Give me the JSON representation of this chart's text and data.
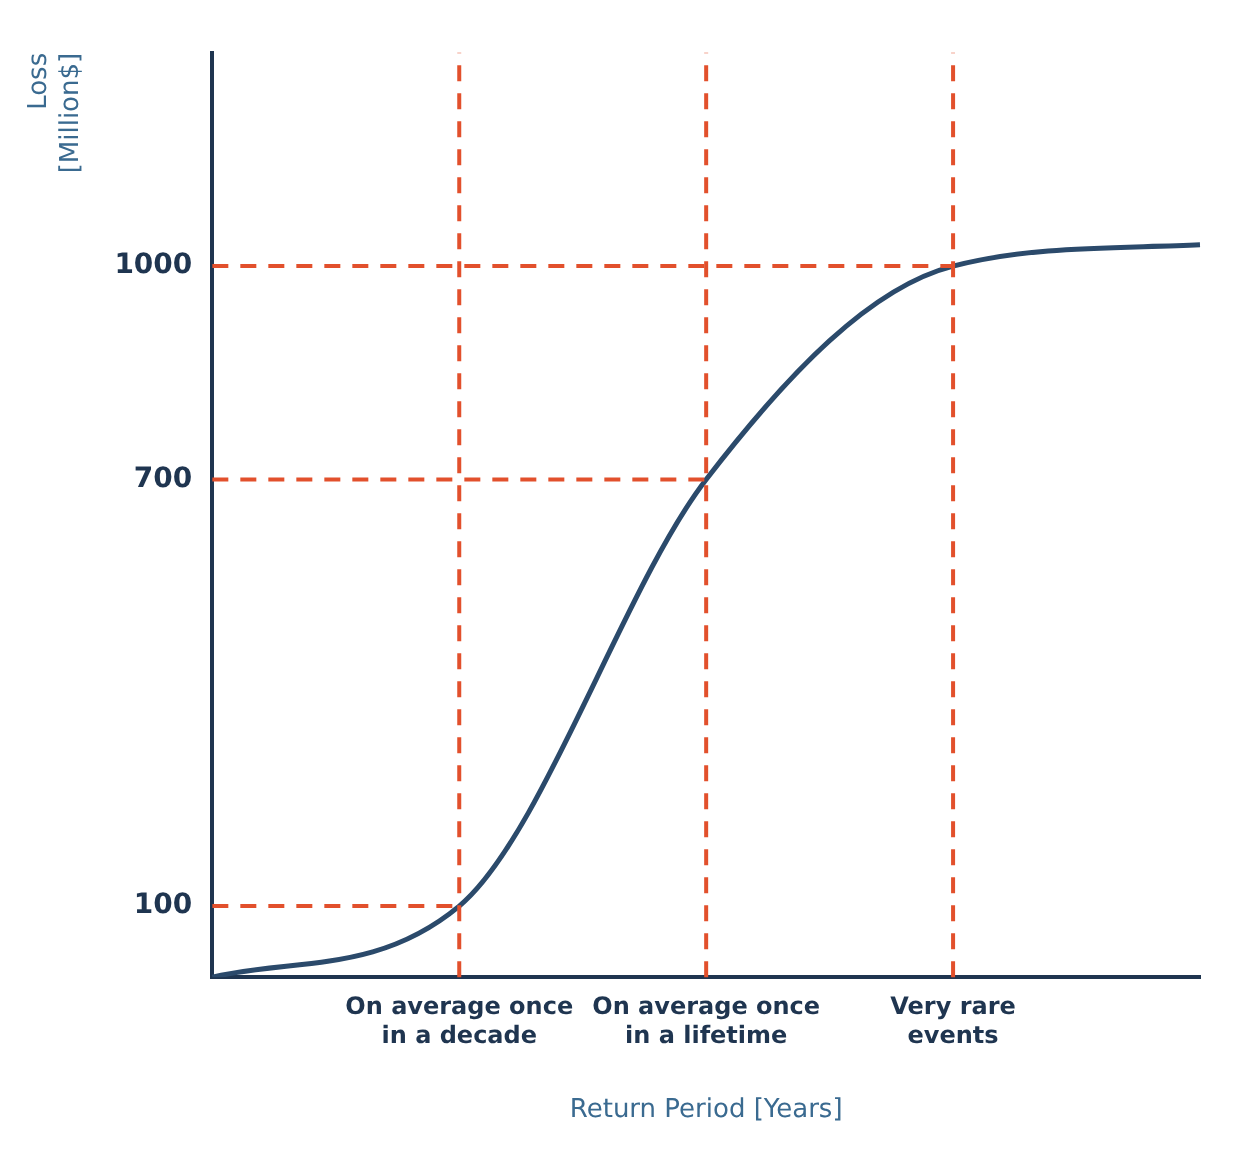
{
  "chart_data": {
    "type": "line",
    "xlabel": "Return Period [Years]",
    "ylabel": "Loss [Million$]",
    "categories": [
      null,
      "On average once in a decade",
      "On average once in a lifetime",
      "Very rare events",
      null
    ],
    "series": [
      {
        "color": "#2b4a6b",
        "values": [
          0,
          100,
          700,
          1000,
          1030
        ]
      }
    ],
    "ylim": [
      0,
      1300
    ],
    "yticks": [
      100,
      700,
      1000
    ],
    "grid": false,
    "legend": false,
    "marker": "none",
    "line_style": "solid",
    "ref_lines": [
      {
        "axis": "y",
        "value": 100,
        "color": "#e2502c",
        "line_style": "dashed"
      },
      {
        "axis": "y",
        "value": 700,
        "color": "#e2502c",
        "line_style": "dashed"
      },
      {
        "axis": "y",
        "value": 1000,
        "color": "#e2502c",
        "line_style": "dashed"
      },
      {
        "axis": "x",
        "value": "On average once in a decade",
        "color": "#e2502c",
        "line_style": "dashed"
      },
      {
        "axis": "x",
        "value": "On average once in a lifetime",
        "color": "#e2502c",
        "line_style": "dashed"
      },
      {
        "axis": "x",
        "value": "Very rare events",
        "color": "#e2502c",
        "line_style": "dashed"
      }
    ]
  }
}
